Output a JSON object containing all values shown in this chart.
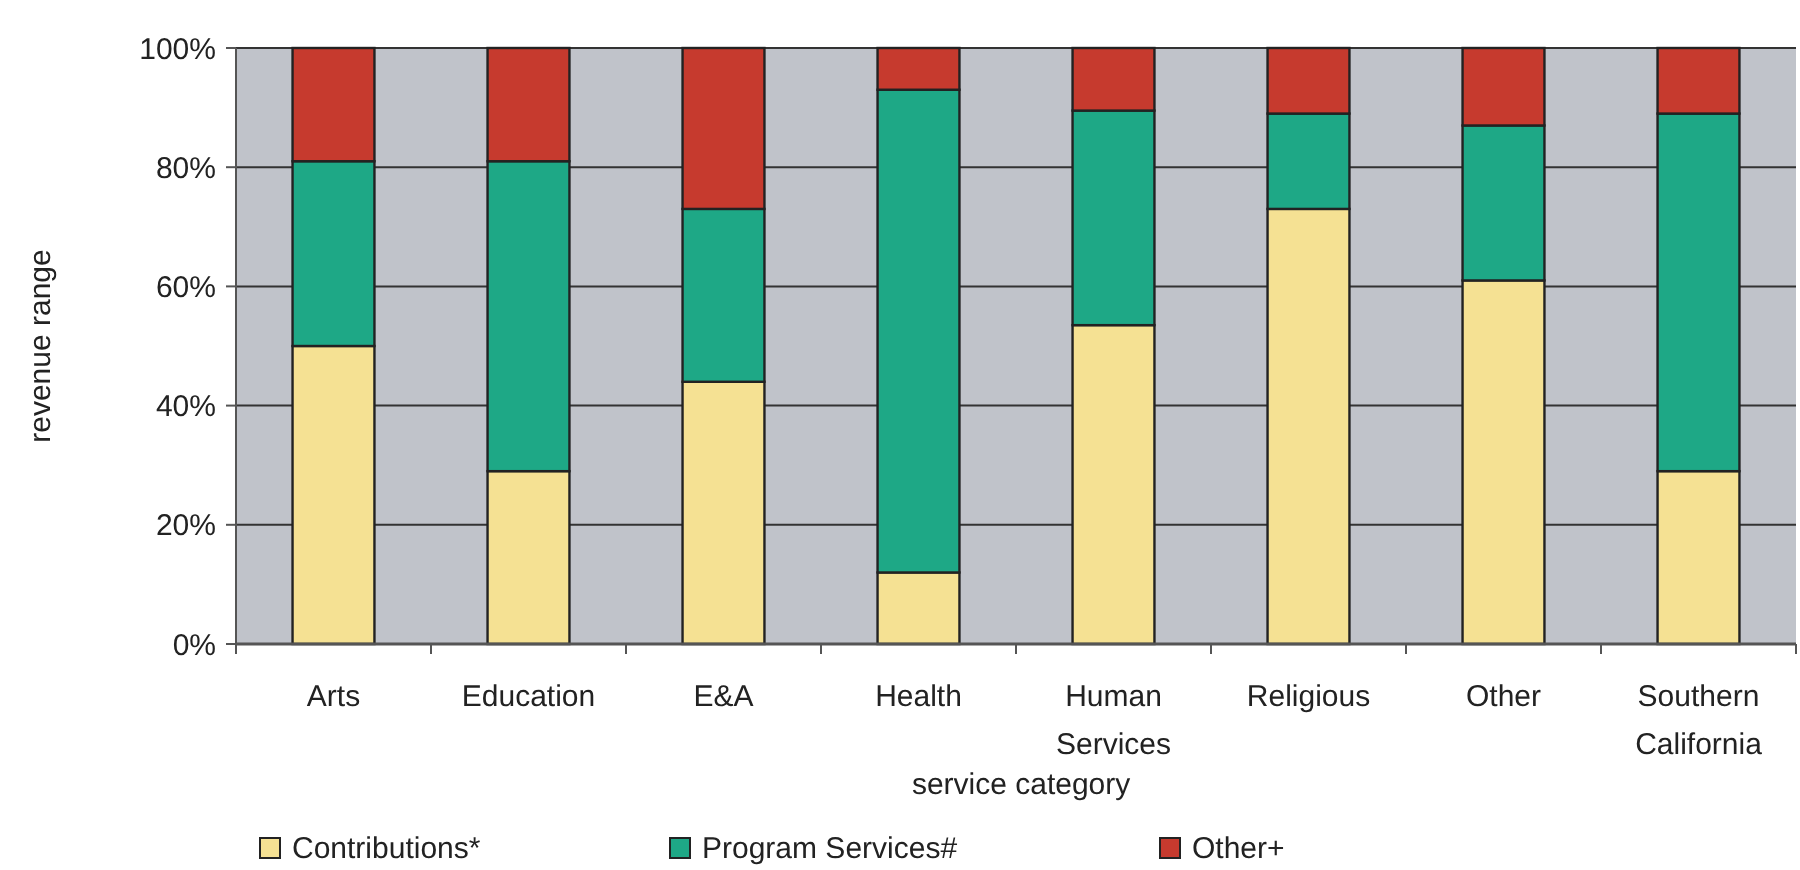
{
  "chart_data": {
    "type": "bar",
    "stacked": true,
    "xlabel": "service category",
    "ylabel": "revenue range",
    "categories": [
      "Arts",
      "Education",
      "E&A",
      "Health",
      "Human Services",
      "Religious",
      "Other",
      "Southern California"
    ],
    "series": [
      {
        "name": "Contributions*",
        "color": "#f5e193",
        "values": [
          50,
          29,
          44,
          12,
          53.5,
          73,
          61,
          29
        ]
      },
      {
        "name": "Program Services#",
        "color": "#1ea886",
        "values": [
          31,
          52,
          29,
          81,
          36,
          16,
          26,
          60
        ]
      },
      {
        "name": "Other+",
        "color": "#c63a2e",
        "values": [
          19,
          19,
          27,
          7,
          10.5,
          11,
          13,
          11
        ]
      }
    ],
    "ylim": [
      0,
      100
    ],
    "yticks": [
      {
        "value": 0,
        "label": "0%"
      },
      {
        "value": 20,
        "label": "20%"
      },
      {
        "value": 40,
        "label": "40%"
      },
      {
        "value": 60,
        "label": "60%"
      },
      {
        "value": 80,
        "label": "80%"
      },
      {
        "value": 100,
        "label": "100%"
      }
    ],
    "grid": "y",
    "legend": "bottom"
  }
}
